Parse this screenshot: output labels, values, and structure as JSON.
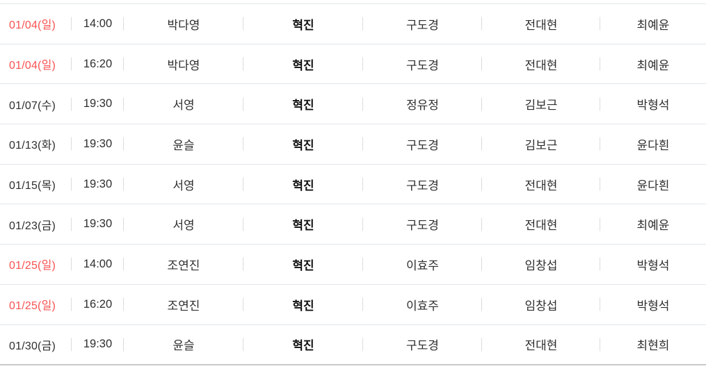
{
  "colors": {
    "sunday_date_red": "#fa5252",
    "text_default": "#2e2e2e",
    "row_separator": "#e2e7ea",
    "cell_divider": "#d9dcde",
    "bottom_border": "#c9c9c9"
  },
  "table": {
    "rows": [
      {
        "date": "01/04(일)",
        "red": true,
        "time": "14:00",
        "cast": [
          "박다영",
          "혁진",
          "구도경",
          "전대현",
          "최예윤"
        ]
      },
      {
        "date": "01/04(일)",
        "red": true,
        "time": "16:20",
        "cast": [
          "박다영",
          "혁진",
          "구도경",
          "전대현",
          "최예윤"
        ]
      },
      {
        "date": "01/07(수)",
        "red": false,
        "time": "19:30",
        "cast": [
          "서영",
          "혁진",
          "정유정",
          "김보근",
          "박형석"
        ]
      },
      {
        "date": "01/13(화)",
        "red": false,
        "time": "19:30",
        "cast": [
          "윤슬",
          "혁진",
          "구도경",
          "김보근",
          "윤다흰"
        ]
      },
      {
        "date": "01/15(목)",
        "red": false,
        "time": "19:30",
        "cast": [
          "서영",
          "혁진",
          "구도경",
          "전대현",
          "윤다흰"
        ]
      },
      {
        "date": "01/23(금)",
        "red": false,
        "time": "19:30",
        "cast": [
          "서영",
          "혁진",
          "구도경",
          "전대현",
          "최예윤"
        ]
      },
      {
        "date": "01/25(일)",
        "red": true,
        "time": "14:00",
        "cast": [
          "조연진",
          "혁진",
          "이효주",
          "임창섭",
          "박형석"
        ]
      },
      {
        "date": "01/25(일)",
        "red": true,
        "time": "16:20",
        "cast": [
          "조연진",
          "혁진",
          "이효주",
          "임창섭",
          "박형석"
        ]
      },
      {
        "date": "01/30(금)",
        "red": false,
        "time": "19:30",
        "cast": [
          "윤슬",
          "혁진",
          "구도경",
          "전대현",
          "최현희"
        ]
      }
    ]
  }
}
